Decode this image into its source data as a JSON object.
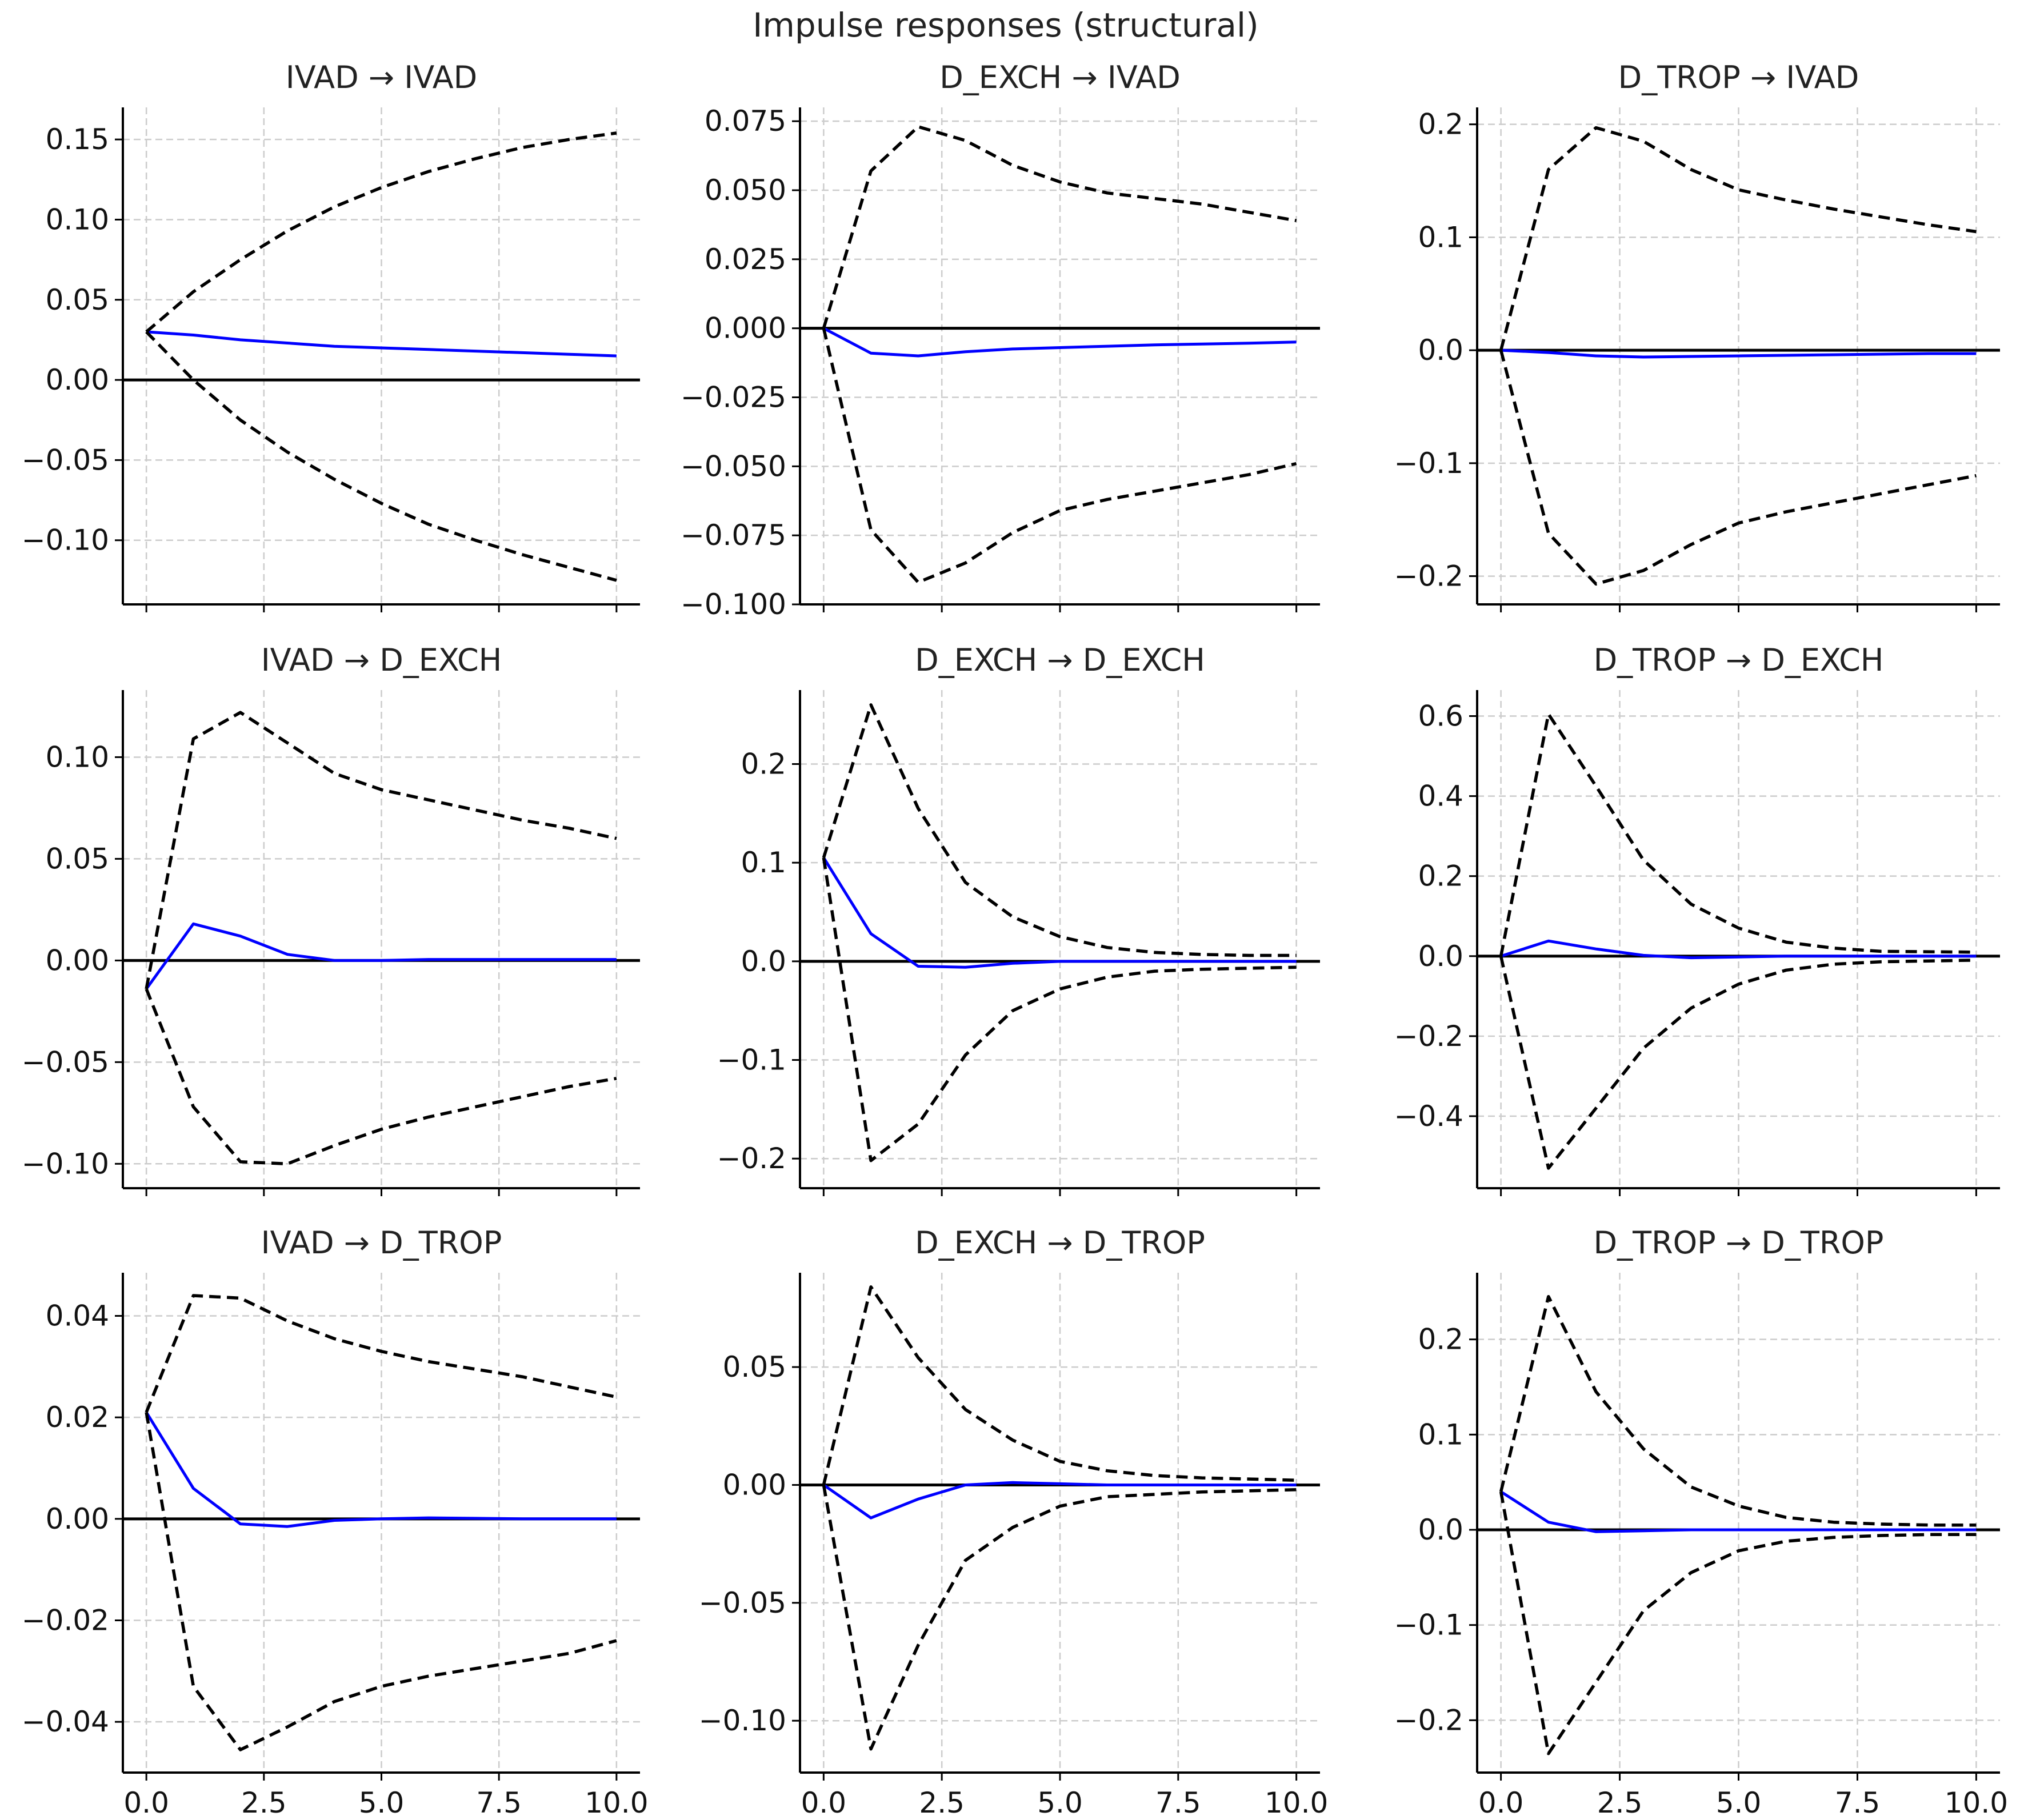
{
  "figure_title": "Impulse responses (structural)",
  "colors": {
    "response": "#0000ff",
    "bands": "#000000",
    "zero": "#000000",
    "grid": "#cccccc",
    "axes": "#000000"
  },
  "x_ticks": [
    "0.0",
    "2.5",
    "5.0",
    "7.5",
    "10.0"
  ],
  "chart_data": [
    {
      "type": "line",
      "title": "IVAD → IVAD",
      "xlim": [
        -0.5,
        10.5
      ],
      "ylim": [
        -0.14,
        0.17
      ],
      "y_ticks": [
        0.15,
        0.1,
        0.05,
        0.0,
        -0.05,
        -0.1
      ],
      "y_tick_labels": [
        "0.15",
        "0.10",
        "0.05",
        "0.00",
        "−0.05",
        "−0.10"
      ],
      "x": [
        0,
        1,
        2,
        3,
        4,
        5,
        6,
        7,
        8,
        9,
        10
      ],
      "series": [
        {
          "name": "response",
          "values": [
            0.03,
            0.028,
            0.025,
            0.023,
            0.021,
            0.02,
            0.019,
            0.018,
            0.017,
            0.016,
            0.015
          ]
        },
        {
          "name": "upper",
          "values": [
            0.03,
            0.055,
            0.075,
            0.093,
            0.108,
            0.12,
            0.13,
            0.138,
            0.145,
            0.15,
            0.154
          ]
        },
        {
          "name": "lower",
          "values": [
            0.03,
            0.0,
            -0.025,
            -0.045,
            -0.062,
            -0.077,
            -0.09,
            -0.1,
            -0.109,
            -0.117,
            -0.125
          ]
        }
      ]
    },
    {
      "type": "line",
      "title": "D_EXCH → IVAD",
      "xlim": [
        -0.5,
        10.5
      ],
      "ylim": [
        -0.1,
        0.08
      ],
      "y_ticks": [
        0.075,
        0.05,
        0.025,
        0.0,
        -0.025,
        -0.05,
        -0.075,
        -0.1
      ],
      "y_tick_labels": [
        "0.075",
        "0.050",
        "0.025",
        "0.000",
        "−0.025",
        "−0.050",
        "−0.075",
        "−0.100"
      ],
      "x": [
        0,
        1,
        2,
        3,
        4,
        5,
        6,
        7,
        8,
        9,
        10
      ],
      "series": [
        {
          "name": "response",
          "values": [
            0.0,
            -0.009,
            -0.01,
            -0.0085,
            -0.0075,
            -0.007,
            -0.0065,
            -0.006,
            -0.0057,
            -0.0054,
            -0.005
          ]
        },
        {
          "name": "upper",
          "values": [
            0.0,
            0.057,
            0.073,
            0.068,
            0.059,
            0.053,
            0.049,
            0.047,
            0.045,
            0.042,
            0.039
          ]
        },
        {
          "name": "lower",
          "values": [
            0.0,
            -0.073,
            -0.092,
            -0.085,
            -0.074,
            -0.066,
            -0.062,
            -0.059,
            -0.056,
            -0.053,
            -0.049
          ]
        }
      ]
    },
    {
      "type": "line",
      "title": "D_TROP → IVAD",
      "xlim": [
        -0.5,
        10.5
      ],
      "ylim": [
        -0.225,
        0.215
      ],
      "y_ticks": [
        0.2,
        0.1,
        0.0,
        -0.1,
        -0.2
      ],
      "y_tick_labels": [
        "0.2",
        "0.1",
        "0.0",
        "−0.1",
        "−0.2"
      ],
      "x": [
        0,
        1,
        2,
        3,
        4,
        5,
        6,
        7,
        8,
        9,
        10
      ],
      "series": [
        {
          "name": "response",
          "values": [
            0.0,
            -0.002,
            -0.005,
            -0.006,
            -0.0055,
            -0.005,
            -0.0045,
            -0.004,
            -0.0035,
            -0.003,
            -0.003
          ]
        },
        {
          "name": "upper",
          "values": [
            0.0,
            0.16,
            0.197,
            0.185,
            0.16,
            0.142,
            0.133,
            0.125,
            0.118,
            0.111,
            0.105
          ]
        },
        {
          "name": "lower",
          "values": [
            0.0,
            -0.162,
            -0.207,
            -0.195,
            -0.172,
            -0.153,
            -0.143,
            -0.135,
            -0.127,
            -0.119,
            -0.111
          ]
        }
      ]
    },
    {
      "type": "line",
      "title": "IVAD → D_EXCH",
      "xlim": [
        -0.5,
        10.5
      ],
      "ylim": [
        -0.112,
        0.133
      ],
      "y_ticks": [
        0.1,
        0.05,
        0.0,
        -0.05,
        -0.1
      ],
      "y_tick_labels": [
        "0.10",
        "0.05",
        "0.00",
        "−0.05",
        "−0.10"
      ],
      "x": [
        0,
        1,
        2,
        3,
        4,
        5,
        6,
        7,
        8,
        9,
        10
      ],
      "series": [
        {
          "name": "response",
          "values": [
            -0.014,
            0.018,
            0.012,
            0.003,
            0.0,
            0.0,
            0.0005,
            0.0005,
            0.0005,
            0.0005,
            0.0005
          ]
        },
        {
          "name": "upper",
          "values": [
            -0.014,
            0.109,
            0.122,
            0.107,
            0.092,
            0.084,
            0.079,
            0.074,
            0.069,
            0.065,
            0.06
          ]
        },
        {
          "name": "lower",
          "values": [
            -0.014,
            -0.072,
            -0.099,
            -0.1,
            -0.091,
            -0.083,
            -0.077,
            -0.072,
            -0.067,
            -0.062,
            -0.058
          ]
        }
      ]
    },
    {
      "type": "line",
      "title": "D_EXCH → D_EXCH",
      "xlim": [
        -0.5,
        10.5
      ],
      "ylim": [
        -0.23,
        0.275
      ],
      "y_ticks": [
        0.2,
        0.1,
        0.0,
        -0.1,
        -0.2
      ],
      "y_tick_labels": [
        "0.2",
        "0.1",
        "0.0",
        "−0.1",
        "−0.2"
      ],
      "x": [
        0,
        1,
        2,
        3,
        4,
        5,
        6,
        7,
        8,
        9,
        10
      ],
      "series": [
        {
          "name": "response",
          "values": [
            0.105,
            0.028,
            -0.005,
            -0.006,
            -0.002,
            0.0,
            0.0,
            0.0,
            0.0,
            0.0,
            0.0
          ]
        },
        {
          "name": "upper",
          "values": [
            0.105,
            0.26,
            0.155,
            0.08,
            0.045,
            0.025,
            0.014,
            0.009,
            0.007,
            0.006,
            0.006
          ]
        },
        {
          "name": "lower",
          "values": [
            0.105,
            -0.202,
            -0.165,
            -0.095,
            -0.05,
            -0.028,
            -0.016,
            -0.01,
            -0.008,
            -0.007,
            -0.006
          ]
        }
      ]
    },
    {
      "type": "line",
      "title": "D_TROP → D_EXCH",
      "xlim": [
        -0.5,
        10.5
      ],
      "ylim": [
        -0.58,
        0.665
      ],
      "y_ticks": [
        0.6,
        0.4,
        0.2,
        0.0,
        -0.2,
        -0.4
      ],
      "y_tick_labels": [
        "0.6",
        "0.4",
        "0.2",
        "0.0",
        "−0.2",
        "−0.4"
      ],
      "x": [
        0,
        1,
        2,
        3,
        4,
        5,
        6,
        7,
        8,
        9,
        10
      ],
      "series": [
        {
          "name": "response",
          "values": [
            0.0,
            0.038,
            0.018,
            0.002,
            -0.004,
            -0.002,
            0.0,
            0.0,
            0.0,
            0.0,
            0.0
          ]
        },
        {
          "name": "upper",
          "values": [
            0.0,
            0.605,
            0.425,
            0.24,
            0.13,
            0.07,
            0.035,
            0.02,
            0.012,
            0.011,
            0.01
          ]
        },
        {
          "name": "lower",
          "values": [
            0.0,
            -0.53,
            -0.38,
            -0.23,
            -0.13,
            -0.07,
            -0.035,
            -0.02,
            -0.014,
            -0.012,
            -0.01
          ]
        }
      ]
    },
    {
      "type": "line",
      "title": "IVAD → D_TROP",
      "xlim": [
        -0.5,
        10.5
      ],
      "ylim": [
        -0.05,
        0.0485
      ],
      "y_ticks": [
        0.04,
        0.02,
        0.0,
        -0.02,
        -0.04
      ],
      "y_tick_labels": [
        "0.04",
        "0.02",
        "0.00",
        "−0.02",
        "−0.04"
      ],
      "x": [
        0,
        1,
        2,
        3,
        4,
        5,
        6,
        7,
        8,
        9,
        10
      ],
      "series": [
        {
          "name": "response",
          "values": [
            0.021,
            0.006,
            -0.001,
            -0.0015,
            -0.0003,
            0.0,
            0.0002,
            0.0001,
            0.0,
            0.0,
            0.0
          ]
        },
        {
          "name": "upper",
          "values": [
            0.021,
            0.044,
            0.0435,
            0.039,
            0.0355,
            0.033,
            0.031,
            0.0295,
            0.028,
            0.026,
            0.024
          ]
        },
        {
          "name": "lower",
          "values": [
            0.021,
            -0.033,
            -0.0455,
            -0.041,
            -0.036,
            -0.033,
            -0.031,
            -0.0295,
            -0.028,
            -0.0265,
            -0.024
          ]
        }
      ]
    },
    {
      "type": "line",
      "title": "D_EXCH → D_TROP",
      "xlim": [
        -0.5,
        10.5
      ],
      "ylim": [
        -0.122,
        0.09
      ],
      "y_ticks": [
        0.05,
        0.0,
        -0.05,
        -0.1
      ],
      "y_tick_labels": [
        "0.05",
        "0.00",
        "−0.05",
        "−0.10"
      ],
      "x": [
        0,
        1,
        2,
        3,
        4,
        5,
        6,
        7,
        8,
        9,
        10
      ],
      "series": [
        {
          "name": "response",
          "values": [
            0.0,
            -0.014,
            -0.006,
            0.0,
            0.001,
            0.0005,
            0.0,
            0.0,
            0.0,
            0.0,
            0.0
          ]
        },
        {
          "name": "upper",
          "values": [
            0.0,
            0.084,
            0.054,
            0.032,
            0.019,
            0.01,
            0.006,
            0.004,
            0.003,
            0.0025,
            0.002
          ]
        },
        {
          "name": "lower",
          "values": [
            0.0,
            -0.112,
            -0.068,
            -0.032,
            -0.018,
            -0.009,
            -0.005,
            -0.004,
            -0.003,
            -0.0025,
            -0.002
          ]
        }
      ]
    },
    {
      "type": "line",
      "title": "D_TROP → D_TROP",
      "xlim": [
        -0.5,
        10.5
      ],
      "ylim": [
        -0.255,
        0.27
      ],
      "y_ticks": [
        0.2,
        0.1,
        0.0,
        -0.1,
        -0.2
      ],
      "y_tick_labels": [
        "0.2",
        "0.1",
        "0.0",
        "−0.1",
        "−0.2"
      ],
      "x": [
        0,
        1,
        2,
        3,
        4,
        5,
        6,
        7,
        8,
        9,
        10
      ],
      "series": [
        {
          "name": "response",
          "values": [
            0.04,
            0.008,
            -0.002,
            -0.001,
            0.0,
            0.0,
            0.0,
            0.0,
            0.0,
            0.0,
            0.0
          ]
        },
        {
          "name": "upper",
          "values": [
            0.04,
            0.245,
            0.145,
            0.085,
            0.045,
            0.025,
            0.013,
            0.008,
            0.006,
            0.005,
            0.005
          ]
        },
        {
          "name": "lower",
          "values": [
            0.04,
            -0.235,
            -0.16,
            -0.085,
            -0.045,
            -0.022,
            -0.012,
            -0.008,
            -0.006,
            -0.005,
            -0.005
          ]
        }
      ]
    }
  ]
}
